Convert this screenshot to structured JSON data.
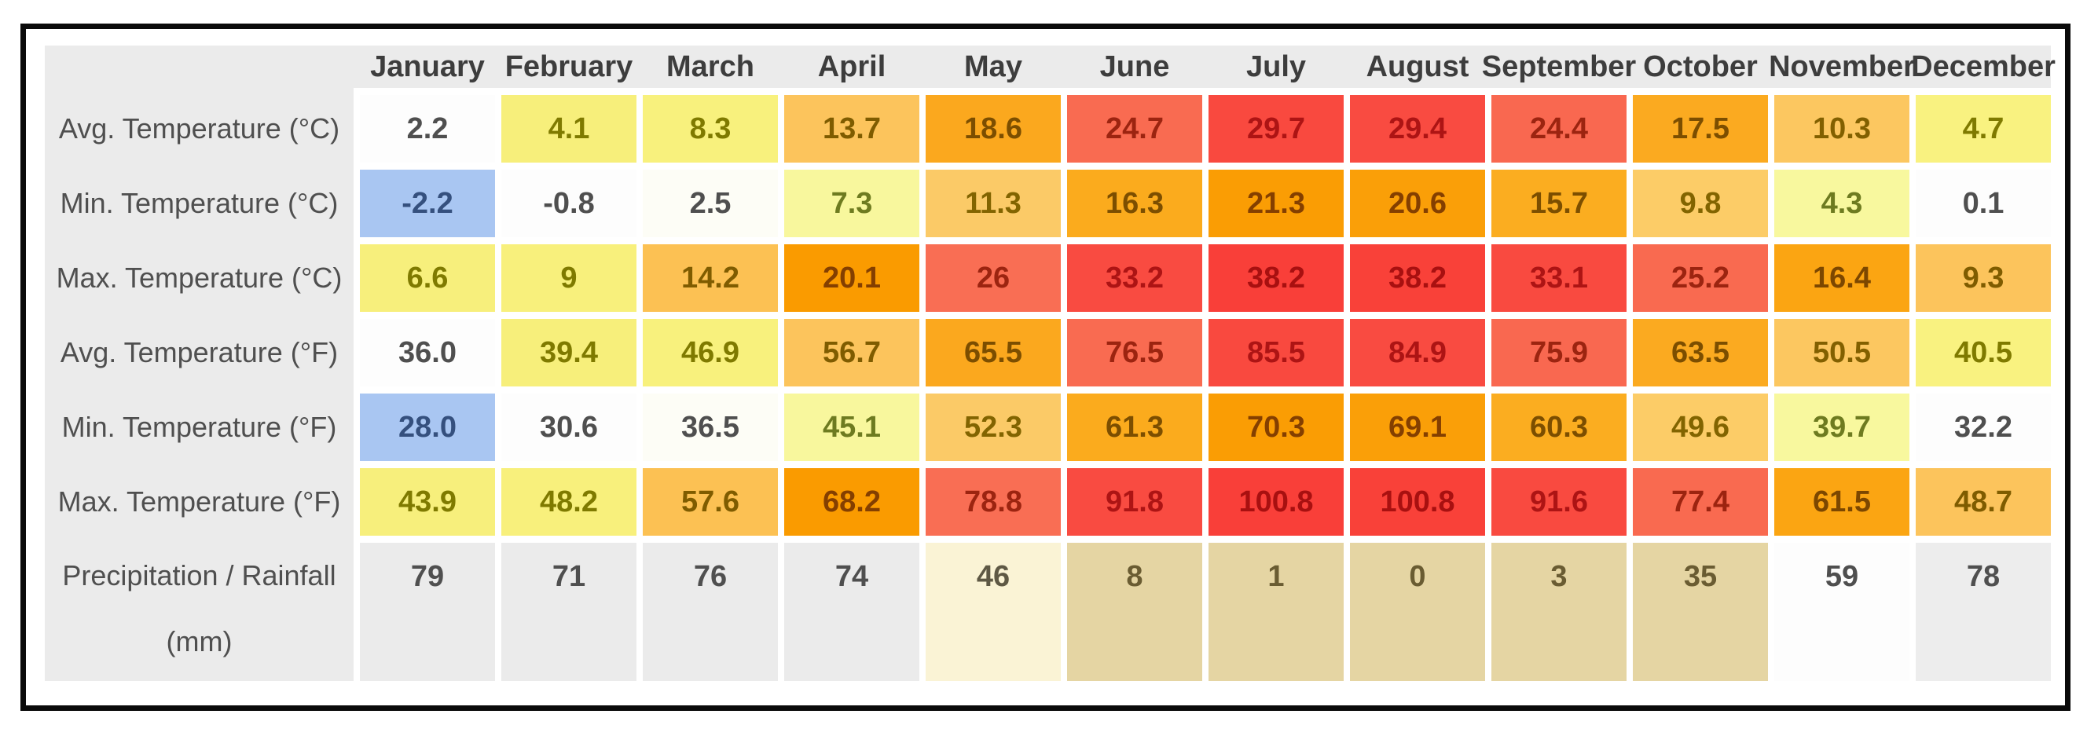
{
  "frame": {
    "border_color": "#0a0a0a",
    "page_bg": "#ffffff",
    "table_bg": "#ebebeb",
    "header_fg": "#3d3d3d",
    "label_fg": "#4f4f4f"
  },
  "table": {
    "columns": [
      "January",
      "February",
      "March",
      "April",
      "May",
      "June",
      "July",
      "August",
      "September",
      "October",
      "November",
      "December"
    ],
    "rows": [
      {
        "label": "Avg. Temperature (°C)",
        "label2": "",
        "cells": [
          {
            "v": "2.2",
            "bg": "#fdfdfd",
            "fg": "#4f4f4f"
          },
          {
            "v": "4.1",
            "bg": "#f7ef7b",
            "fg": "#7f7a00"
          },
          {
            "v": "8.3",
            "bg": "#f8f17d",
            "fg": "#7f7a00"
          },
          {
            "v": "13.7",
            "bg": "#fcc45c",
            "fg": "#7f5c00"
          },
          {
            "v": "18.6",
            "bg": "#fba81e",
            "fg": "#7c4e00"
          },
          {
            "v": "24.7",
            "bg": "#f96b51",
            "fg": "#9c2410"
          },
          {
            "v": "29.7",
            "bg": "#f9493f",
            "fg": "#ad1414"
          },
          {
            "v": "29.4",
            "bg": "#f94b41",
            "fg": "#ad1414"
          },
          {
            "v": "24.4",
            "bg": "#f96850",
            "fg": "#9c2410"
          },
          {
            "v": "17.5",
            "bg": "#fbaa20",
            "fg": "#7c4e00"
          },
          {
            "v": "10.3",
            "bg": "#fcc760",
            "fg": "#826000"
          },
          {
            "v": "4.7",
            "bg": "#f9f280",
            "fg": "#7f7a00"
          }
        ]
      },
      {
        "label": "Min. Temperature (°C)",
        "label2": "",
        "cells": [
          {
            "v": "-2.2",
            "bg": "#a9c6f2",
            "fg": "#35507e"
          },
          {
            "v": "-0.8",
            "bg": "#fdfdfd",
            "fg": "#4f4f4f"
          },
          {
            "v": "2.5",
            "bg": "#fdfdf6",
            "fg": "#4f4f4f"
          },
          {
            "v": "7.3",
            "bg": "#f8f79d",
            "fg": "#6e7b20"
          },
          {
            "v": "11.3",
            "bg": "#fbca67",
            "fg": "#826400"
          },
          {
            "v": "16.3",
            "bg": "#fbab1d",
            "fg": "#7c4e00"
          },
          {
            "v": "21.3",
            "bg": "#fa9d04",
            "fg": "#843f00"
          },
          {
            "v": "20.6",
            "bg": "#fa9f08",
            "fg": "#843f00"
          },
          {
            "v": "15.7",
            "bg": "#fbad20",
            "fg": "#7c4e00"
          },
          {
            "v": "9.8",
            "bg": "#fccc67",
            "fg": "#826400"
          },
          {
            "v": "4.3",
            "bg": "#f8f89e",
            "fg": "#6e7b20"
          },
          {
            "v": "0.1",
            "bg": "#fdfdfd",
            "fg": "#4f4f4f"
          }
        ]
      },
      {
        "label": "Max. Temperature (°C)",
        "label2": "",
        "cells": [
          {
            "v": "6.6",
            "bg": "#f7ef7c",
            "fg": "#7f7a00"
          },
          {
            "v": "9",
            "bg": "#f8f07c",
            "fg": "#7f7a00"
          },
          {
            "v": "14.2",
            "bg": "#fcc153",
            "fg": "#7f5c00"
          },
          {
            "v": "20.1",
            "bg": "#fa9b00",
            "fg": "#843f00"
          },
          {
            "v": "26",
            "bg": "#f96e54",
            "fg": "#9c2410"
          },
          {
            "v": "33.2",
            "bg": "#f94b41",
            "fg": "#ad1414"
          },
          {
            "v": "38.2",
            "bg": "#f93f39",
            "fg": "#a81010"
          },
          {
            "v": "38.2",
            "bg": "#f94139",
            "fg": "#a81010"
          },
          {
            "v": "33.1",
            "bg": "#f94a40",
            "fg": "#ad1414"
          },
          {
            "v": "25.2",
            "bg": "#f96a50",
            "fg": "#9c2410"
          },
          {
            "v": "16.4",
            "bg": "#fba512",
            "fg": "#7c4700"
          },
          {
            "v": "9.3",
            "bg": "#fcc45c",
            "fg": "#7f5c00"
          }
        ]
      },
      {
        "label": "Avg. Temperature (°F)",
        "label2": "",
        "cells": [
          {
            "v": "36.0",
            "bg": "#fdfdfd",
            "fg": "#4f4f4f"
          },
          {
            "v": "39.4",
            "bg": "#f7ef7b",
            "fg": "#7f7a00"
          },
          {
            "v": "46.9",
            "bg": "#f8f17d",
            "fg": "#7f7a00"
          },
          {
            "v": "56.7",
            "bg": "#fcc45c",
            "fg": "#7f5c00"
          },
          {
            "v": "65.5",
            "bg": "#fba81e",
            "fg": "#7c4e00"
          },
          {
            "v": "76.5",
            "bg": "#f96b51",
            "fg": "#9c2410"
          },
          {
            "v": "85.5",
            "bg": "#f9493f",
            "fg": "#ad1414"
          },
          {
            "v": "84.9",
            "bg": "#f94b41",
            "fg": "#ad1414"
          },
          {
            "v": "75.9",
            "bg": "#f96850",
            "fg": "#9c2410"
          },
          {
            "v": "63.5",
            "bg": "#fbaa20",
            "fg": "#7c4e00"
          },
          {
            "v": "50.5",
            "bg": "#fcc760",
            "fg": "#826000"
          },
          {
            "v": "40.5",
            "bg": "#f9f280",
            "fg": "#7f7a00"
          }
        ]
      },
      {
        "label": "Min. Temperature (°F)",
        "label2": "",
        "cells": [
          {
            "v": "28.0",
            "bg": "#a9c6f2",
            "fg": "#35507e"
          },
          {
            "v": "30.6",
            "bg": "#fdfdfd",
            "fg": "#4f4f4f"
          },
          {
            "v": "36.5",
            "bg": "#fdfdf6",
            "fg": "#4f4f4f"
          },
          {
            "v": "45.1",
            "bg": "#f8f79d",
            "fg": "#6e7b20"
          },
          {
            "v": "52.3",
            "bg": "#fbca67",
            "fg": "#826400"
          },
          {
            "v": "61.3",
            "bg": "#fbab1d",
            "fg": "#7c4e00"
          },
          {
            "v": "70.3",
            "bg": "#fa9d04",
            "fg": "#843f00"
          },
          {
            "v": "69.1",
            "bg": "#fa9f08",
            "fg": "#843f00"
          },
          {
            "v": "60.3",
            "bg": "#fbad20",
            "fg": "#7c4e00"
          },
          {
            "v": "49.6",
            "bg": "#fccc67",
            "fg": "#826400"
          },
          {
            "v": "39.7",
            "bg": "#f8f89e",
            "fg": "#6e7b20"
          },
          {
            "v": "32.2",
            "bg": "#fdfdfd",
            "fg": "#4f4f4f"
          }
        ]
      },
      {
        "label": "Max. Temperature (°F)",
        "label2": "",
        "cells": [
          {
            "v": "43.9",
            "bg": "#f7ef7c",
            "fg": "#7f7a00"
          },
          {
            "v": "48.2",
            "bg": "#f8f07c",
            "fg": "#7f7a00"
          },
          {
            "v": "57.6",
            "bg": "#fcc153",
            "fg": "#7f5c00"
          },
          {
            "v": "68.2",
            "bg": "#fa9b00",
            "fg": "#843f00"
          },
          {
            "v": "78.8",
            "bg": "#f96e54",
            "fg": "#9c2410"
          },
          {
            "v": "91.8",
            "bg": "#f94b41",
            "fg": "#ad1414"
          },
          {
            "v": "100.8",
            "bg": "#f93f39",
            "fg": "#a81010"
          },
          {
            "v": "100.8",
            "bg": "#f94139",
            "fg": "#a81010"
          },
          {
            "v": "91.6",
            "bg": "#f94a40",
            "fg": "#ad1414"
          },
          {
            "v": "77.4",
            "bg": "#f96a50",
            "fg": "#9c2410"
          },
          {
            "v": "61.5",
            "bg": "#fba512",
            "fg": "#7c4700"
          },
          {
            "v": "48.7",
            "bg": "#fcc45c",
            "fg": "#7f5c00"
          }
        ]
      },
      {
        "label": "Precipitation / Rainfall",
        "label2": "(mm)",
        "cells": [
          {
            "v": "79",
            "bg": "#ebebeb",
            "fg": "#4f4f4f"
          },
          {
            "v": "71",
            "bg": "#ebebeb",
            "fg": "#4f4f4f"
          },
          {
            "v": "76",
            "bg": "#ebebeb",
            "fg": "#4f4f4f"
          },
          {
            "v": "74",
            "bg": "#ebebeb",
            "fg": "#4f4f4f"
          },
          {
            "v": "46",
            "bg": "#faf3d5",
            "fg": "#5e5844"
          },
          {
            "v": "8",
            "bg": "#e5d5a3",
            "fg": "#6a5c32"
          },
          {
            "v": "1",
            "bg": "#e5d5a3",
            "fg": "#6a5c32"
          },
          {
            "v": "0",
            "bg": "#e5d5a3",
            "fg": "#6a5c32"
          },
          {
            "v": "3",
            "bg": "#e5d5a3",
            "fg": "#6a5c32"
          },
          {
            "v": "35",
            "bg": "#e5d5a3",
            "fg": "#6a5c32"
          },
          {
            "v": "59",
            "bg": "#fdfdfd",
            "fg": "#4f4f4f"
          },
          {
            "v": "78",
            "bg": "#ededed",
            "fg": "#4f4f4f"
          }
        ]
      }
    ]
  },
  "chart_data": {
    "type": "table",
    "title": "Monthly climate data table",
    "categories": [
      "January",
      "February",
      "March",
      "April",
      "May",
      "June",
      "July",
      "August",
      "September",
      "October",
      "November",
      "December"
    ],
    "series": [
      {
        "name": "Avg. Temperature (°C)",
        "values": [
          2.2,
          4.1,
          8.3,
          13.7,
          18.6,
          24.7,
          29.7,
          29.4,
          24.4,
          17.5,
          10.3,
          4.7
        ]
      },
      {
        "name": "Min. Temperature (°C)",
        "values": [
          -2.2,
          -0.8,
          2.5,
          7.3,
          11.3,
          16.3,
          21.3,
          20.6,
          15.7,
          9.8,
          4.3,
          0.1
        ]
      },
      {
        "name": "Max. Temperature (°C)",
        "values": [
          6.6,
          9,
          14.2,
          20.1,
          26,
          33.2,
          38.2,
          38.2,
          33.1,
          25.2,
          16.4,
          9.3
        ]
      },
      {
        "name": "Avg. Temperature (°F)",
        "values": [
          36.0,
          39.4,
          46.9,
          56.7,
          65.5,
          76.5,
          85.5,
          84.9,
          75.9,
          63.5,
          50.5,
          40.5
        ]
      },
      {
        "name": "Min. Temperature (°F)",
        "values": [
          28.0,
          30.6,
          36.5,
          45.1,
          52.3,
          61.3,
          70.3,
          69.1,
          60.3,
          49.6,
          39.7,
          32.2
        ]
      },
      {
        "name": "Max. Temperature (°F)",
        "values": [
          43.9,
          48.2,
          57.6,
          68.2,
          78.8,
          91.8,
          100.8,
          100.8,
          91.6,
          77.4,
          61.5,
          48.7
        ]
      },
      {
        "name": "Precipitation / Rainfall (mm)",
        "values": [
          79,
          71,
          76,
          74,
          46,
          8,
          1,
          0,
          3,
          35,
          59,
          78
        ]
      }
    ],
    "layout": {
      "heatmap": true,
      "temperature_gradient": [
        "#a9c6f2",
        "#ffffff",
        "#f8f07c",
        "#fcc45c",
        "#fbab1d",
        "#fa9d04",
        "#f96b51",
        "#f9493f"
      ],
      "precipitation_dry_color": "#e5d5a3",
      "grid": false,
      "legend": "none"
    }
  }
}
